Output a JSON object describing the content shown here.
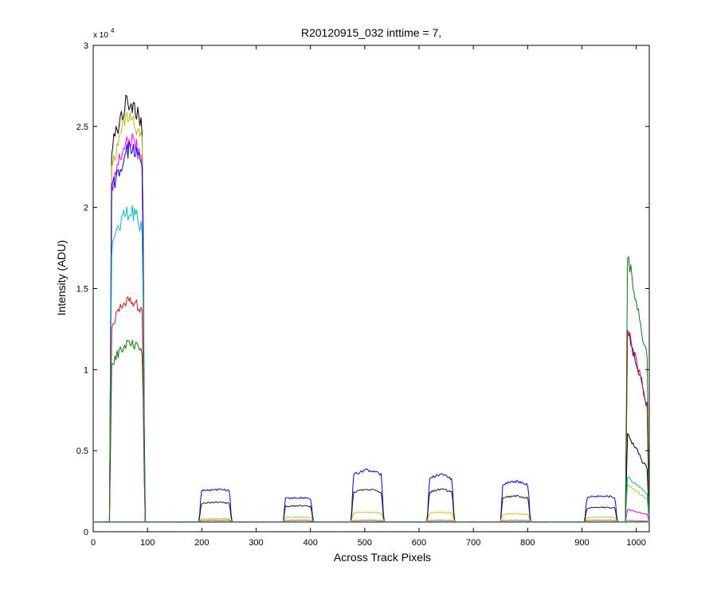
{
  "chart_data": {
    "type": "line",
    "title": "R20120915_032 inttime = 7,",
    "xlabel": "Across Track Pixels",
    "ylabel": "Intensity (ADU)",
    "xlim": [
      0,
      1024
    ],
    "ylim": [
      0,
      30000
    ],
    "xticks": [
      0,
      100,
      200,
      300,
      400,
      500,
      600,
      700,
      800,
      900,
      1000
    ],
    "yticks": [
      0,
      0.5,
      1,
      1.5,
      2,
      2.5,
      3
    ],
    "y_multiplier": {
      "base": "x 10",
      "exponent": "4"
    },
    "grid": false,
    "legend": "none",
    "baseline": 600,
    "segments": [
      {
        "x_start": 30,
        "x_end": 95,
        "shape": "rising"
      },
      {
        "x_start": 195,
        "x_end": 255,
        "shape": "flat"
      },
      {
        "x_start": 350,
        "x_end": 405,
        "shape": "flat"
      },
      {
        "x_start": 475,
        "x_end": 535,
        "shape": "dome"
      },
      {
        "x_start": 615,
        "x_end": 665,
        "shape": "dome"
      },
      {
        "x_start": 750,
        "x_end": 805,
        "shape": "dome"
      },
      {
        "x_start": 905,
        "x_end": 965,
        "shape": "flat"
      },
      {
        "x_start": 980,
        "x_end": 1024,
        "shape": "decay"
      }
    ],
    "series": [
      {
        "color": "#000000",
        "peaks": [
          26500,
          0,
          0,
          0,
          0,
          0,
          0,
          6200
        ]
      },
      {
        "color": "#bfbf00",
        "peaks": [
          25500,
          0,
          0,
          0,
          0,
          0,
          0,
          3000
        ]
      },
      {
        "color": "#ff00ff",
        "peaks": [
          24000,
          0,
          0,
          0,
          0,
          0,
          0,
          1400
        ]
      },
      {
        "color": "#0000ff",
        "peaks": [
          23500,
          2600,
          2100,
          3800,
          3500,
          3100,
          2200,
          12800
        ]
      },
      {
        "color": "#00bfbf",
        "peaks": [
          19700,
          0,
          0,
          0,
          0,
          0,
          0,
          3500
        ]
      },
      {
        "color": "#ff0000",
        "peaks": [
          14200,
          0,
          0,
          0,
          0,
          0,
          0,
          13000
        ]
      },
      {
        "color": "#008000",
        "peaks": [
          11600,
          0,
          0,
          0,
          0,
          0,
          0,
          17800
        ]
      },
      {
        "color": "#1a1a1a",
        "peaks": [
          0,
          1800,
          1600,
          2600,
          2600,
          2200,
          1500,
          0
        ]
      },
      {
        "color": "#c8c800",
        "peaks": [
          0,
          800,
          900,
          1200,
          1200,
          1100,
          900,
          0
        ]
      },
      {
        "color": "#ff3333",
        "peaks": [
          0,
          700,
          700,
          700,
          700,
          700,
          700,
          700
        ]
      },
      {
        "color": "#008080",
        "peaks": [
          0,
          0,
          0,
          0,
          0,
          0,
          0,
          0
        ]
      }
    ]
  }
}
